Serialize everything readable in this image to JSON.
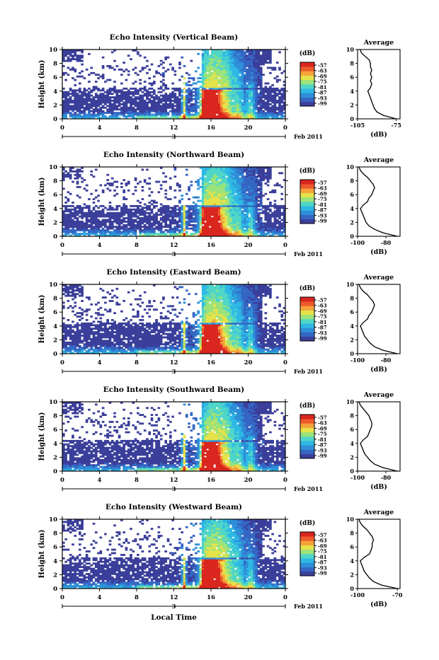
{
  "figure": {
    "xlabel": "Local Time",
    "date_label": "Feb 2011",
    "day_label": "3",
    "colorbar_unit": "(dB)",
    "colorbar_ticks": [
      "-57",
      "-63",
      "-69",
      "-75",
      "-81",
      "-87",
      "-93",
      "-99"
    ],
    "colorbar_colors": [
      "#3b3f9a",
      "#3566c4",
      "#2e8fd8",
      "#2fb8e4",
      "#50d6c8",
      "#9be37a",
      "#e6e24a",
      "#f5a23a",
      "#ee5a2c",
      "#d9261f"
    ],
    "profile_title": "Average",
    "profile_xlabel": "(dB)"
  },
  "chart_data": [
    {
      "type": "heatmap",
      "title": "Echo Intensity (Vertical Beam)",
      "ylabel": "Height (km)",
      "x_ticks": [
        "0",
        "4",
        "8",
        "12",
        "16",
        "20",
        "0"
      ],
      "y_ticks": [
        "0",
        "2",
        "4",
        "6",
        "8",
        "10"
      ],
      "xlim": [
        0,
        24
      ],
      "ylim": [
        0,
        10
      ],
      "colorbar_range": [
        -99,
        -57
      ],
      "profile": {
        "type": "line",
        "title": "Average",
        "xlabel": "(dB)",
        "x_ticks": [
          "-105",
          "-75"
        ],
        "xlim": [
          -105,
          -72
        ],
        "y": [
          0,
          0.5,
          1,
          1.5,
          2,
          2.5,
          3,
          3.5,
          4,
          4.5,
          5,
          5.5,
          6,
          6.5,
          7,
          7.5,
          8,
          8.5,
          9,
          9.5,
          10
        ],
        "x": [
          -75,
          -85,
          -90,
          -92,
          -93,
          -94,
          -95,
          -96,
          -97,
          -95,
          -94,
          -95,
          -94,
          -95,
          -94,
          -95,
          -95,
          -96,
          -99,
          -102,
          -103
        ]
      }
    },
    {
      "type": "heatmap",
      "title": "Echo Intensity (Northward Beam)",
      "ylabel": "Height (km)",
      "x_ticks": [
        "0",
        "4",
        "8",
        "12",
        "16",
        "20",
        "0"
      ],
      "y_ticks": [
        "0",
        "2",
        "4",
        "6",
        "8",
        "10"
      ],
      "xlim": [
        0,
        24
      ],
      "ylim": [
        0,
        10
      ],
      "colorbar_range": [
        -99,
        -57
      ],
      "profile": {
        "type": "line",
        "title": "Average",
        "xlabel": "(dB)",
        "x_ticks": [
          "-100",
          "-80"
        ],
        "xlim": [
          -100,
          -70
        ],
        "y": [
          0,
          0.5,
          1,
          1.5,
          2,
          2.5,
          3,
          3.5,
          4,
          4.5,
          5,
          5.5,
          6,
          6.5,
          7,
          7.5,
          8,
          8.5,
          9,
          9.5,
          10
        ],
        "x": [
          -72,
          -82,
          -88,
          -92,
          -94,
          -95,
          -96,
          -97,
          -98,
          -96,
          -93,
          -92,
          -90,
          -89,
          -88,
          -89,
          -91,
          -93,
          -96,
          -98,
          -99
        ]
      }
    },
    {
      "type": "heatmap",
      "title": "Echo Intensity (Eastward Beam)",
      "ylabel": "Height (km)",
      "x_ticks": [
        "0",
        "4",
        "8",
        "12",
        "16",
        "20",
        "0"
      ],
      "y_ticks": [
        "0",
        "2",
        "4",
        "6",
        "8",
        "10"
      ],
      "xlim": [
        0,
        24
      ],
      "ylim": [
        0,
        10
      ],
      "colorbar_range": [
        -99,
        -57
      ],
      "profile": {
        "type": "line",
        "title": "Average",
        "xlabel": "(dB)",
        "x_ticks": [
          "-100",
          "-80"
        ],
        "xlim": [
          -100,
          -70
        ],
        "y": [
          0,
          0.5,
          1,
          1.5,
          2,
          2.5,
          3,
          3.5,
          4,
          4.5,
          5,
          5.5,
          6,
          6.5,
          7,
          7.5,
          8,
          8.5,
          9,
          9.5,
          10
        ],
        "x": [
          -72,
          -82,
          -88,
          -91,
          -93,
          -95,
          -96,
          -97,
          -98,
          -96,
          -93,
          -92,
          -90,
          -89,
          -88,
          -89,
          -91,
          -93,
          -96,
          -98,
          -99
        ]
      }
    },
    {
      "type": "heatmap",
      "title": "Echo Intensity (Southward Beam)",
      "ylabel": "Height (km)",
      "x_ticks": [
        "0",
        "4",
        "8",
        "12",
        "16",
        "20",
        "0"
      ],
      "y_ticks": [
        "0",
        "2",
        "4",
        "6",
        "8",
        "10"
      ],
      "xlim": [
        0,
        24
      ],
      "ylim": [
        0,
        10
      ],
      "colorbar_range": [
        -99,
        -57
      ],
      "profile": {
        "type": "line",
        "title": "Average",
        "xlabel": "(dB)",
        "x_ticks": [
          "-100",
          "-80"
        ],
        "xlim": [
          -100,
          -70
        ],
        "y": [
          0,
          0.5,
          1,
          1.5,
          2,
          2.5,
          3,
          3.5,
          4,
          4.5,
          5,
          5.5,
          6,
          6.5,
          7,
          7.5,
          8,
          8.5,
          9,
          9.5,
          10
        ],
        "x": [
          -72,
          -82,
          -88,
          -91,
          -93,
          -95,
          -96,
          -97,
          -98,
          -96,
          -93,
          -92,
          -91,
          -90,
          -90,
          -91,
          -92,
          -94,
          -96,
          -98,
          -99
        ]
      }
    },
    {
      "type": "heatmap",
      "title": "Echo Intensity (Westward Beam)",
      "ylabel": "Height (km)",
      "x_ticks": [
        "0",
        "4",
        "8",
        "12",
        "16",
        "20",
        "0"
      ],
      "y_ticks": [
        "0",
        "2",
        "4",
        "6",
        "8",
        "10"
      ],
      "xlim": [
        0,
        24
      ],
      "ylim": [
        0,
        10
      ],
      "colorbar_range": [
        -99,
        -57
      ],
      "profile": {
        "type": "line",
        "title": "Average",
        "xlabel": "(dB)",
        "x_ticks": [
          "-100",
          "-70"
        ],
        "xlim": [
          -100,
          -68
        ],
        "y": [
          0,
          0.5,
          1,
          1.5,
          2,
          2.5,
          3,
          3.5,
          4,
          4.5,
          5,
          5.5,
          6,
          6.5,
          7,
          7.5,
          8,
          8.5,
          9,
          9.5,
          10
        ],
        "x": [
          -70,
          -82,
          -88,
          -91,
          -93,
          -95,
          -96,
          -97,
          -98,
          -95,
          -91,
          -90,
          -89,
          -89,
          -88,
          -89,
          -91,
          -93,
          -96,
          -98,
          -99
        ]
      }
    }
  ]
}
